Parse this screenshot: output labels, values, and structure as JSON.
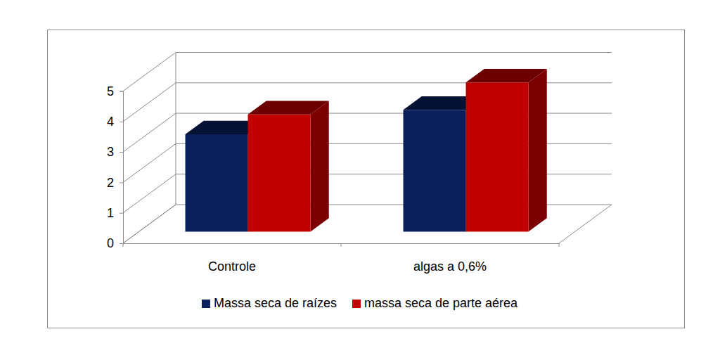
{
  "chart_data": {
    "type": "bar",
    "categories": [
      "Controle",
      "algas a 0,6%"
    ],
    "series": [
      {
        "name": "Massa seca de raízes",
        "color": "#0b1f5c",
        "values": [
          3.2,
          4.0
        ]
      },
      {
        "name": "massa seca de parte aérea",
        "color": "#c00000",
        "values": [
          3.85,
          4.9
        ]
      }
    ],
    "ylim": [
      0,
      5
    ],
    "yticks": [
      0,
      1,
      2,
      3,
      4,
      5
    ],
    "grid": true,
    "legend": "bottom"
  }
}
